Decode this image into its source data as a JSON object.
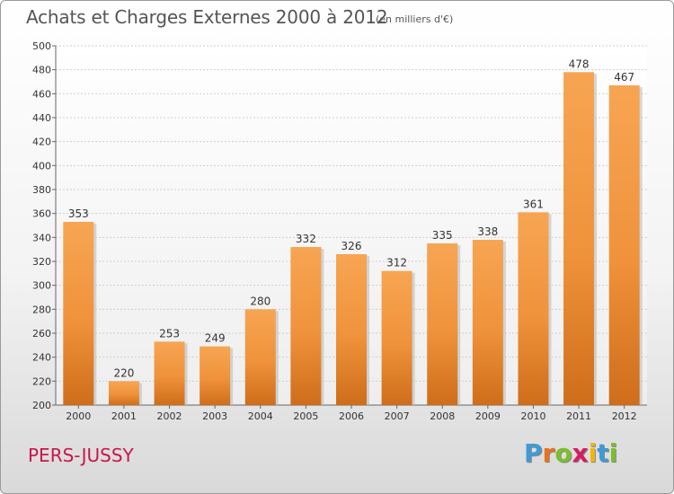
{
  "header": {
    "title": "Achats et Charges Externes 2000 à 2012",
    "unit": "(en milliers d'€)"
  },
  "footer": {
    "city": "PERS-JUSSY",
    "logo_letters": [
      "P",
      "r",
      "o",
      "x",
      "i",
      "t",
      "i"
    ],
    "logo_colors": [
      "#3f9ad6",
      "#e8731a",
      "#7bbf2a",
      "#d81b60",
      "#f2b707",
      "#3f9ad6",
      "#7bbf2a"
    ]
  },
  "chart_data": {
    "type": "bar",
    "categories": [
      "2000",
      "2001",
      "2002",
      "2003",
      "2004",
      "2005",
      "2006",
      "2007",
      "2008",
      "2009",
      "2010",
      "2011",
      "2012"
    ],
    "values": [
      353,
      220,
      253,
      249,
      280,
      332,
      326,
      312,
      335,
      338,
      361,
      478,
      467
    ],
    "ylim": [
      200,
      500
    ],
    "yticks": [
      200,
      220,
      240,
      260,
      280,
      300,
      320,
      340,
      360,
      380,
      400,
      420,
      440,
      460,
      480,
      500
    ],
    "grid": true,
    "bar_color": "#f2963f"
  }
}
